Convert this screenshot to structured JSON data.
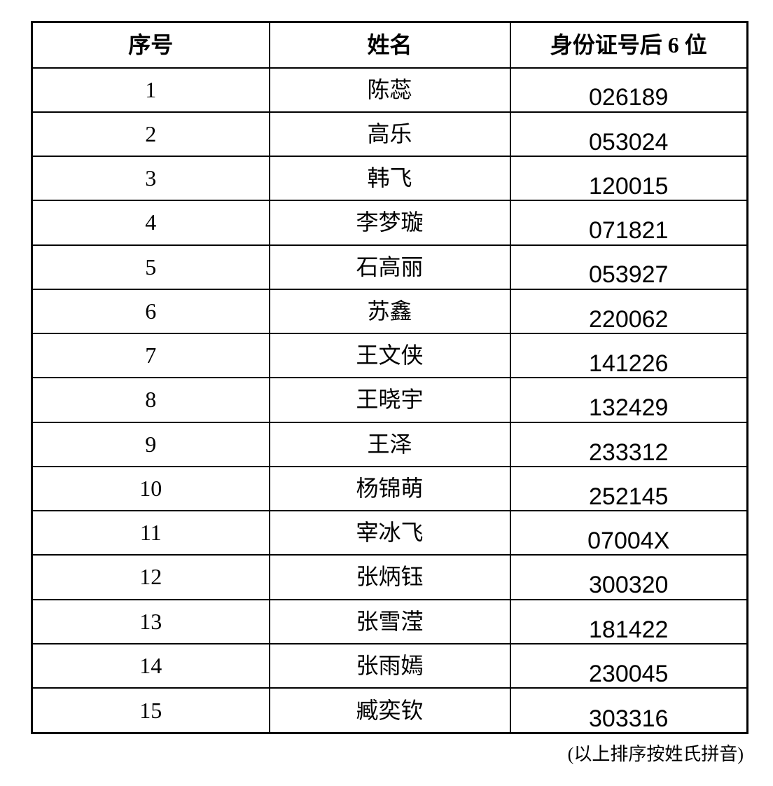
{
  "colors": {
    "background": "#ffffff",
    "border": "#000000",
    "text": "#000000"
  },
  "table": {
    "columns": [
      {
        "key": "index",
        "label": "序号"
      },
      {
        "key": "name",
        "label": "姓名"
      },
      {
        "key": "id6",
        "label": "身份证号后 6 位"
      }
    ],
    "rows": [
      {
        "index": "1",
        "name": "陈蕊",
        "id6": "026189"
      },
      {
        "index": "2",
        "name": "高乐",
        "id6": "053024"
      },
      {
        "index": "3",
        "name": "韩飞",
        "id6": "120015"
      },
      {
        "index": "4",
        "name": "李梦璇",
        "id6": "071821"
      },
      {
        "index": "5",
        "name": "石高丽",
        "id6": "053927"
      },
      {
        "index": "6",
        "name": "苏鑫",
        "id6": "220062"
      },
      {
        "index": "7",
        "name": "王文侠",
        "id6": "141226"
      },
      {
        "index": "8",
        "name": "王晓宇",
        "id6": "132429"
      },
      {
        "index": "9",
        "name": "王泽",
        "id6": "233312"
      },
      {
        "index": "10",
        "name": "杨锦萌",
        "id6": "252145"
      },
      {
        "index": "11",
        "name": "宰冰飞",
        "id6": "07004X"
      },
      {
        "index": "12",
        "name": "张炳钰",
        "id6": "300320"
      },
      {
        "index": "13",
        "name": "张雪滢",
        "id6": "181422"
      },
      {
        "index": "14",
        "name": "张雨嫣",
        "id6": "230045"
      },
      {
        "index": "15",
        "name": "臧奕钦",
        "id6": "303316"
      }
    ]
  },
  "footer": {
    "note": "(以上排序按姓氏拼音)"
  }
}
